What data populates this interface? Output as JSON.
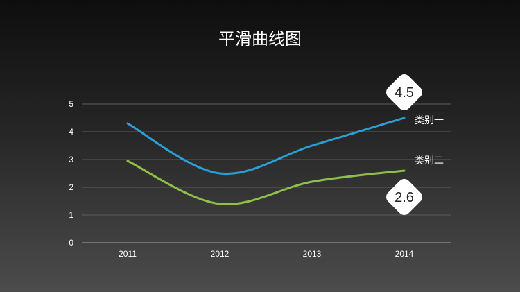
{
  "chart_data": {
    "type": "line",
    "title": "平滑曲线图",
    "categories": [
      "2011",
      "2012",
      "2013",
      "2014"
    ],
    "ylim": [
      0,
      5
    ],
    "yticks": [
      "0",
      "1",
      "2",
      "3",
      "4",
      "5"
    ],
    "grid": true,
    "series": [
      {
        "name": "类别一",
        "values": [
          4.3,
          2.5,
          3.5,
          4.5
        ],
        "color": "#2a9fd6"
      },
      {
        "name": "类别二",
        "values": [
          2.95,
          1.4,
          2.2,
          2.6
        ],
        "color": "#8fc04a"
      }
    ],
    "callouts": [
      {
        "label": "4.5",
        "series": 0,
        "point": 3
      },
      {
        "label": "2.6",
        "series": 1,
        "point": 3
      }
    ]
  }
}
